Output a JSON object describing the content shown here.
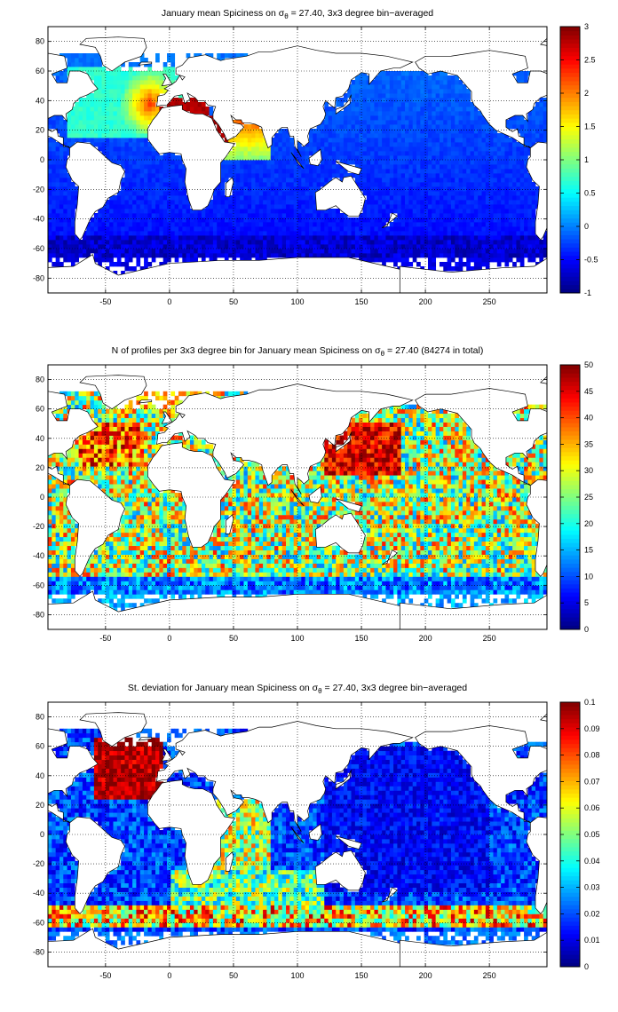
{
  "chart_data": [
    {
      "type": "heatmap",
      "title": "January mean Spiciness on σ",
      "title_sub": "θ",
      "title_rest": " = 27.40, 3x3 degree bin−averaged",
      "xlim": [
        -95,
        295
      ],
      "ylim": [
        -90,
        90
      ],
      "xticks": [
        -50,
        0,
        50,
        100,
        150,
        200,
        250
      ],
      "yticks": [
        -80,
        -60,
        -40,
        -20,
        0,
        20,
        40,
        60,
        80
      ],
      "colorbar": {
        "min": -1,
        "max": 3,
        "ticks": [
          -1,
          -0.5,
          0,
          0.5,
          1,
          1.5,
          2,
          2.5,
          3
        ]
      },
      "field": "spice",
      "grid": true
    },
    {
      "type": "heatmap",
      "title": "N of profiles per 3x3 degree bin for January mean Spiciness on σ",
      "title_sub": "θ",
      "title_rest": " = 27.40 (84274 in total)",
      "xlim": [
        -95,
        295
      ],
      "ylim": [
        -90,
        90
      ],
      "xticks": [
        -50,
        0,
        50,
        100,
        150,
        200,
        250
      ],
      "yticks": [
        -80,
        -60,
        -40,
        -20,
        0,
        20,
        40,
        60,
        80
      ],
      "colorbar": {
        "min": 0,
        "max": 50,
        "ticks": [
          0,
          5,
          10,
          15,
          20,
          25,
          30,
          35,
          40,
          45,
          50
        ]
      },
      "field": "count",
      "grid": true
    },
    {
      "type": "heatmap",
      "title": "St. deviation for January mean Spiciness on σ",
      "title_sub": "θ",
      "title_rest": " = 27.40, 3x3 degree bin−averaged",
      "xlim": [
        -95,
        295
      ],
      "ylim": [
        -90,
        90
      ],
      "xticks": [
        -50,
        0,
        50,
        100,
        150,
        200,
        250
      ],
      "yticks": [
        -80,
        -60,
        -40,
        -20,
        0,
        20,
        40,
        60,
        80
      ],
      "colorbar": {
        "min": 0,
        "max": 0.1,
        "ticks": [
          0,
          0.01,
          0.02,
          0.03,
          0.04,
          0.05,
          0.06,
          0.07,
          0.08,
          0.09,
          0.1
        ]
      },
      "field": "std",
      "grid": true
    }
  ],
  "colors": {
    "land": "#ffffff",
    "coast": "#000000",
    "grid": "#000000",
    "colormap": "jet"
  }
}
